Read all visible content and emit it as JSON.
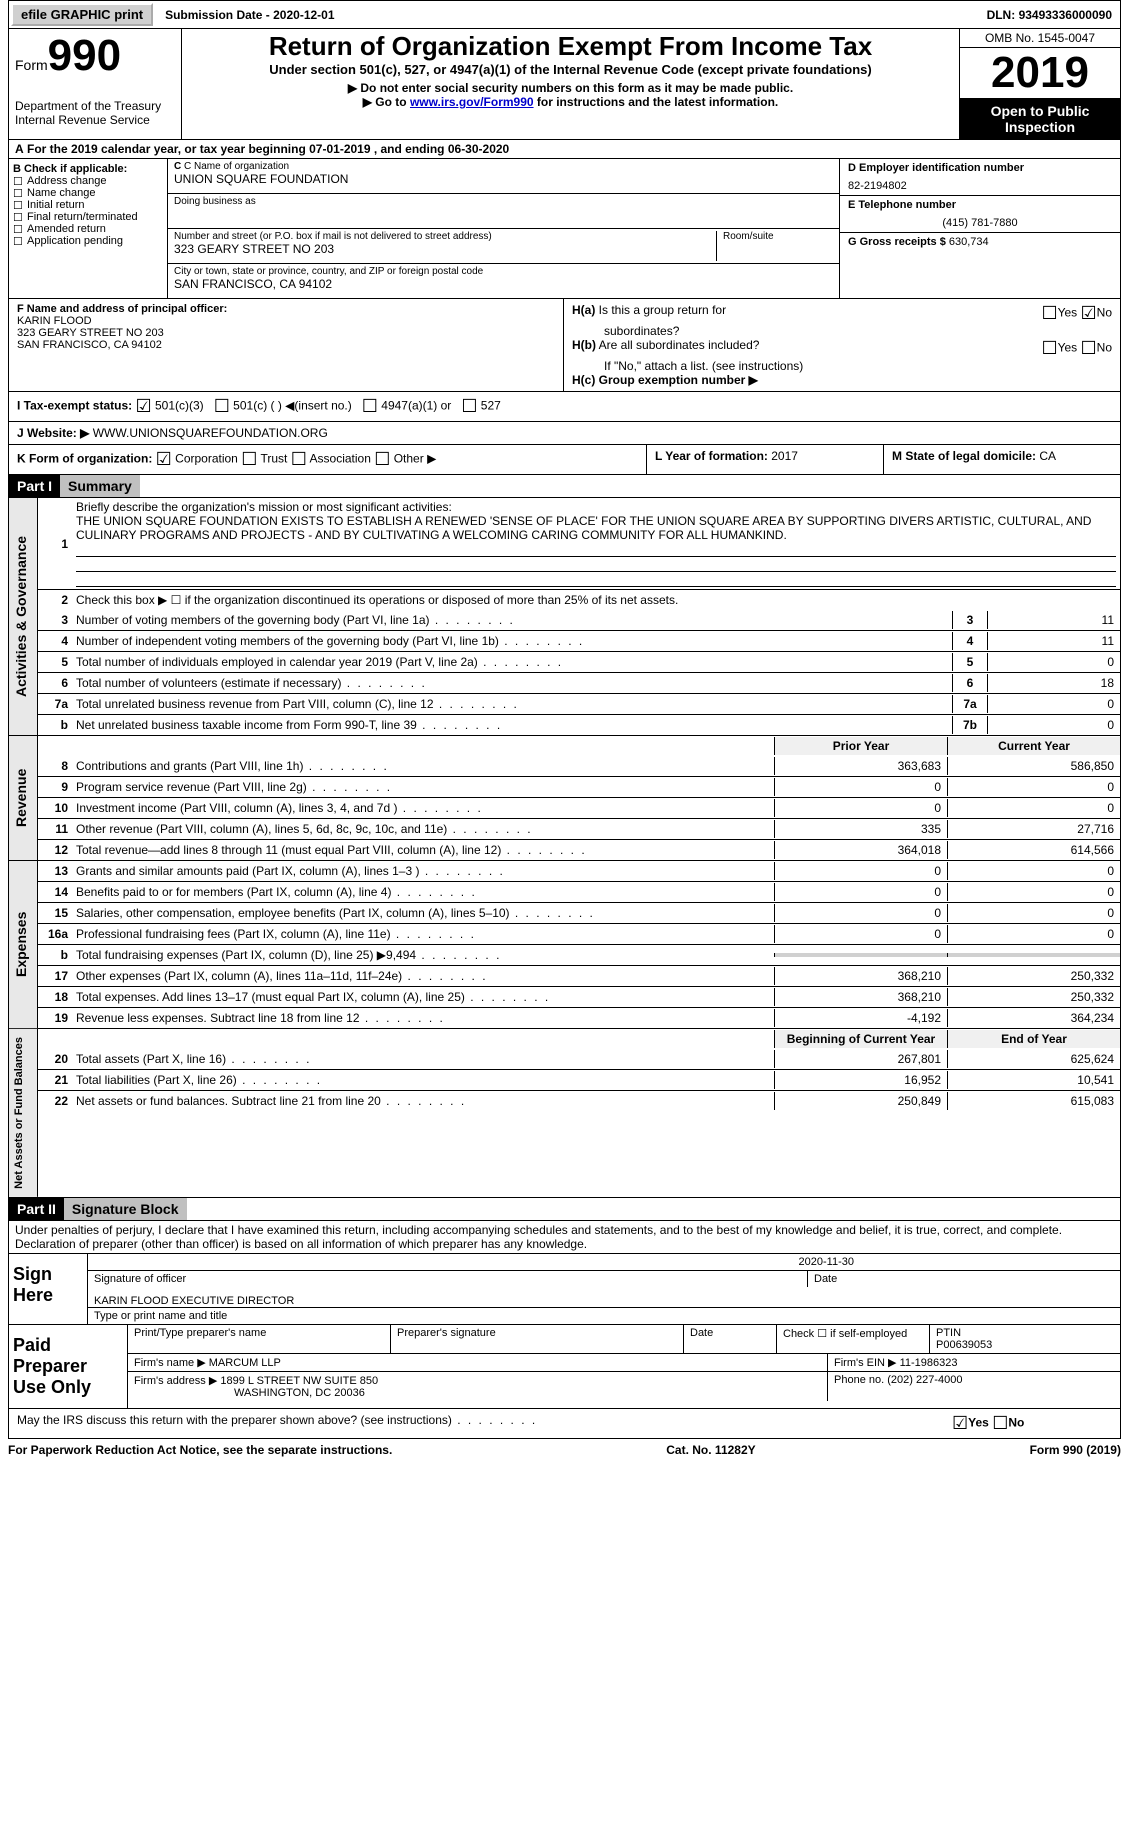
{
  "topbar": {
    "efile": "efile GRAPHIC",
    "print": "print",
    "subdate_label": "Submission Date - ",
    "subdate": "2020-12-01",
    "dln_label": "DLN: ",
    "dln": "93493336000090"
  },
  "header": {
    "form": "Form",
    "num": "990",
    "dept1": "Department of the Treasury",
    "dept2": "Internal Revenue Service",
    "title": "Return of Organization Exempt From Income Tax",
    "sub": "Under section 501(c), 527, or 4947(a)(1) of the Internal Revenue Code (except private foundations)",
    "inst1": "▶ Do not enter social security numbers on this form as it may be made public.",
    "inst2_pre": "▶ Go to ",
    "inst2_link": "www.irs.gov/Form990",
    "inst2_post": " for instructions and the latest information.",
    "omb": "OMB No. 1545-0047",
    "year": "2019",
    "open": "Open to Public Inspection"
  },
  "rowA": "For the 2019 calendar year, or tax year beginning 07-01-2019   , and ending 06-30-2020",
  "secB": {
    "label": "B Check if applicable:",
    "opts": [
      "Address change",
      "Name change",
      "Initial return",
      "Final return/terminated",
      "Amended return",
      "Application pending"
    ]
  },
  "secC": {
    "name_lab": "C Name of organization",
    "name": "UNION SQUARE FOUNDATION",
    "dba_lab": "Doing business as",
    "addr_lab": "Number and street (or P.O. box if mail is not delivered to street address)",
    "room_lab": "Room/suite",
    "addr": "323 GEARY STREET NO 203",
    "city_lab": "City or town, state or province, country, and ZIP or foreign postal code",
    "city": "SAN FRANCISCO, CA  94102"
  },
  "secD": {
    "ein_lab": "D Employer identification number",
    "ein": "82-2194802",
    "tel_lab": "E Telephone number",
    "tel": "(415) 781-7880",
    "gross_lab": "G Gross receipts $",
    "gross": "630,734"
  },
  "secF": {
    "lab": "F  Name and address of principal officer:",
    "name": "KARIN FLOOD",
    "addr1": "323 GEARY STREET NO 203",
    "addr2": "SAN FRANCISCO, CA  94102"
  },
  "secH": {
    "ha": "H(a)  Is this a group return for subordinates?",
    "hb": "H(b)  Are all subordinates included?",
    "hb_note": "If \"No,\" attach a list. (see instructions)",
    "hc": "H(c)  Group exemption number ▶",
    "yes": "Yes",
    "no": "No"
  },
  "secI": {
    "lab": "I    Tax-exempt status:",
    "o1": "501(c)(3)",
    "o2": "501(c) (  ) ◀(insert no.)",
    "o3": "4947(a)(1) or",
    "o4": "527"
  },
  "secJ": {
    "lab": "J    Website: ▶",
    "val": "WWW.UNIONSQUAREFOUNDATION.ORG"
  },
  "secK": {
    "lab": "K Form of organization:",
    "o1": "Corporation",
    "o2": "Trust",
    "o3": "Association",
    "o4": "Other ▶"
  },
  "secL": {
    "lab": "L Year of formation: ",
    "val": "2017"
  },
  "secM": {
    "lab": "M State of legal domicile: ",
    "val": "CA"
  },
  "part1": {
    "hdr": "Part I",
    "title": "Summary",
    "l1_lab": "Briefly describe the organization's mission or most significant activities:",
    "l1_txt": "THE UNION SQUARE FOUNDATION EXISTS TO ESTABLISH A RENEWED 'SENSE OF PLACE' FOR THE UNION SQUARE AREA BY SUPPORTING DIVERS ARTISTIC, CULTURAL, AND CULINARY PROGRAMS AND PROJECTS - AND BY CULTIVATING A WELCOMING CARING COMMUNITY FOR ALL HUMANKIND.",
    "l2": "Check this box ▶ ☐  if the organization discontinued its operations or disposed of more than 25% of its net assets.",
    "sideA": "Activities & Governance",
    "sideR": "Revenue",
    "sideE": "Expenses",
    "sideN": "Net Assets or Fund Balances",
    "rows_gov": [
      {
        "n": "3",
        "t": "Number of voting members of the governing body (Part VI, line 1a)",
        "b": "3",
        "v": "11"
      },
      {
        "n": "4",
        "t": "Number of independent voting members of the governing body (Part VI, line 1b)",
        "b": "4",
        "v": "11"
      },
      {
        "n": "5",
        "t": "Total number of individuals employed in calendar year 2019 (Part V, line 2a)",
        "b": "5",
        "v": "0"
      },
      {
        "n": "6",
        "t": "Total number of volunteers (estimate if necessary)",
        "b": "6",
        "v": "18"
      },
      {
        "n": "7a",
        "t": "Total unrelated business revenue from Part VIII, column (C), line 12",
        "b": "7a",
        "v": "0"
      },
      {
        "n": "b",
        "t": "Net unrelated business taxable income from Form 990-T, line 39",
        "b": "7b",
        "v": "0"
      }
    ],
    "col_py": "Prior Year",
    "col_cy": "Current Year",
    "rows_rev": [
      {
        "n": "8",
        "t": "Contributions and grants (Part VIII, line 1h)",
        "p": "363,683",
        "c": "586,850"
      },
      {
        "n": "9",
        "t": "Program service revenue (Part VIII, line 2g)",
        "p": "0",
        "c": "0"
      },
      {
        "n": "10",
        "t": "Investment income (Part VIII, column (A), lines 3, 4, and 7d )",
        "p": "0",
        "c": "0"
      },
      {
        "n": "11",
        "t": "Other revenue (Part VIII, column (A), lines 5, 6d, 8c, 9c, 10c, and 11e)",
        "p": "335",
        "c": "27,716"
      },
      {
        "n": "12",
        "t": "Total revenue—add lines 8 through 11 (must equal Part VIII, column (A), line 12)",
        "p": "364,018",
        "c": "614,566"
      }
    ],
    "rows_exp": [
      {
        "n": "13",
        "t": "Grants and similar amounts paid (Part IX, column (A), lines 1–3 )",
        "p": "0",
        "c": "0"
      },
      {
        "n": "14",
        "t": "Benefits paid to or for members (Part IX, column (A), line 4)",
        "p": "0",
        "c": "0"
      },
      {
        "n": "15",
        "t": "Salaries, other compensation, employee benefits (Part IX, column (A), lines 5–10)",
        "p": "0",
        "c": "0"
      },
      {
        "n": "16a",
        "t": "Professional fundraising fees (Part IX, column (A), line 11e)",
        "p": "0",
        "c": "0"
      },
      {
        "n": "b",
        "t": "Total fundraising expenses (Part IX, column (D), line 25) ▶9,494",
        "p": "",
        "c": "",
        "shade": true
      },
      {
        "n": "17",
        "t": "Other expenses (Part IX, column (A), lines 11a–11d, 11f–24e)",
        "p": "368,210",
        "c": "250,332"
      },
      {
        "n": "18",
        "t": "Total expenses. Add lines 13–17 (must equal Part IX, column (A), line 25)",
        "p": "368,210",
        "c": "250,332"
      },
      {
        "n": "19",
        "t": "Revenue less expenses. Subtract line 18 from line 12",
        "p": "-4,192",
        "c": "364,234"
      }
    ],
    "col_by": "Beginning of Current Year",
    "col_ey": "End of Year",
    "rows_net": [
      {
        "n": "20",
        "t": "Total assets (Part X, line 16)",
        "p": "267,801",
        "c": "625,624"
      },
      {
        "n": "21",
        "t": "Total liabilities (Part X, line 26)",
        "p": "16,952",
        "c": "10,541"
      },
      {
        "n": "22",
        "t": "Net assets or fund balances. Subtract line 21 from line 20",
        "p": "250,849",
        "c": "615,083"
      }
    ]
  },
  "part2": {
    "hdr": "Part II",
    "title": "Signature Block",
    "decl": "Under penalties of perjury, I declare that I have examined this return, including accompanying schedules and statements, and to the best of my knowledge and belief, it is true, correct, and complete. Declaration of preparer (other than officer) is based on all information of which preparer has any knowledge.",
    "sign_here": "Sign Here",
    "sig_off": "Signature of officer",
    "date": "Date",
    "sig_date": "2020-11-30",
    "name": "KARIN FLOOD  EXECUTIVE DIRECTOR",
    "name_lab": "Type or print name and title",
    "paid": "Paid Preparer Use Only",
    "p_name_lab": "Print/Type preparer's name",
    "p_sig_lab": "Preparer's signature",
    "p_date_lab": "Date",
    "p_check": "Check ☐ if self-employed",
    "ptin_lab": "PTIN",
    "ptin": "P00639053",
    "firm_name_lab": "Firm's name    ▶",
    "firm_name": "MARCUM LLP",
    "firm_ein_lab": "Firm's EIN ▶",
    "firm_ein": "11-1986323",
    "firm_addr_lab": "Firm's address ▶",
    "firm_addr1": "1899 L STREET NW SUITE 850",
    "firm_addr2": "WASHINGTON, DC  20036",
    "phone_lab": "Phone no.",
    "phone": "(202) 227-4000",
    "discuss": "May the IRS discuss this return with the preparer shown above? (see instructions)"
  },
  "footer": {
    "l": "For Paperwork Reduction Act Notice, see the separate instructions.",
    "m": "Cat. No. 11282Y",
    "r": "Form 990 (2019)"
  }
}
